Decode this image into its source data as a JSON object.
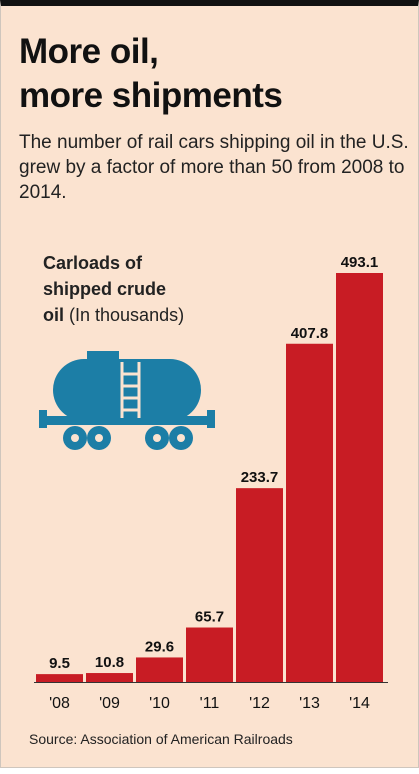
{
  "title_lines": [
    "More oil,",
    "more shipments"
  ],
  "subtitle": "The number of rail cars shipping oil in the U.S. grew by a factor of more than 50 from 2008 to 2014.",
  "source": "Source: Association of American Railroads",
  "colors": {
    "background": "#fbe3d0",
    "bar": "#c81c24",
    "tank": "#1c7ea6"
  },
  "icon": "oil-tank-railcar-icon",
  "chart_data": {
    "type": "bar",
    "title": "Carloads of shipped crude oil",
    "title_lines": [
      "Carloads of",
      "shipped crude",
      "oil"
    ],
    "unit_note": "(In thousands)",
    "categories": [
      "'08",
      "'09",
      "'10",
      "'11",
      "'12",
      "'13",
      "'14"
    ],
    "values": [
      9.5,
      10.8,
      29.6,
      65.7,
      233.7,
      407.8,
      493.1
    ],
    "value_labels": [
      "9.5",
      "10.8",
      "29.6",
      "65.7",
      "233.7",
      "407.8",
      "493.1"
    ],
    "ylim": [
      0,
      493.1
    ],
    "grid": false,
    "legend": "none"
  }
}
